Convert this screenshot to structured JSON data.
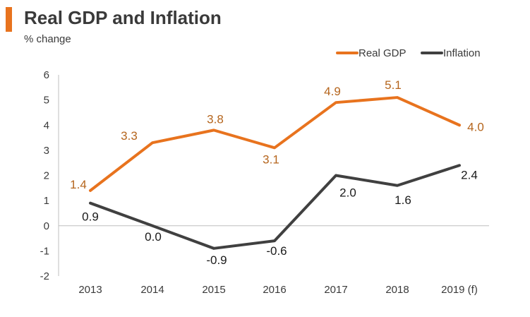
{
  "chart_data": {
    "type": "line",
    "title": "Real GDP and Inflation",
    "subtitle": "% change",
    "categories": [
      "2013",
      "2014",
      "2015",
      "2016",
      "2017",
      "2018",
      "2019 (f)"
    ],
    "series": [
      {
        "name": "Real GDP",
        "color": "#e8731e",
        "values": [
          1.4,
          3.3,
          3.8,
          3.1,
          4.9,
          5.1,
          4.0
        ],
        "labels": [
          "1.4",
          "3.3",
          "3.8",
          "3.1",
          "4.9",
          "5.1",
          "4.0"
        ]
      },
      {
        "name": "Inflation",
        "color": "#404040",
        "values": [
          0.9,
          0.0,
          -0.9,
          -0.6,
          2.0,
          1.6,
          2.4
        ],
        "labels": [
          "0.9",
          "0.0",
          "-0.9",
          "-0.6",
          "2.0",
          "1.6",
          "2.4"
        ]
      }
    ],
    "ylim": [
      -2,
      6
    ],
    "yticks": [
      "6",
      "5",
      "4",
      "3",
      "2",
      "1",
      "0",
      "-1",
      "-2"
    ],
    "xlabel": "",
    "ylabel": "",
    "legend": "top-right",
    "grid": false
  },
  "colors": {
    "accent": "#e8731e",
    "gdp": "#e8731e",
    "inflation": "#404040",
    "text": "#3a3a3a",
    "axis": "#bfbfbf"
  }
}
